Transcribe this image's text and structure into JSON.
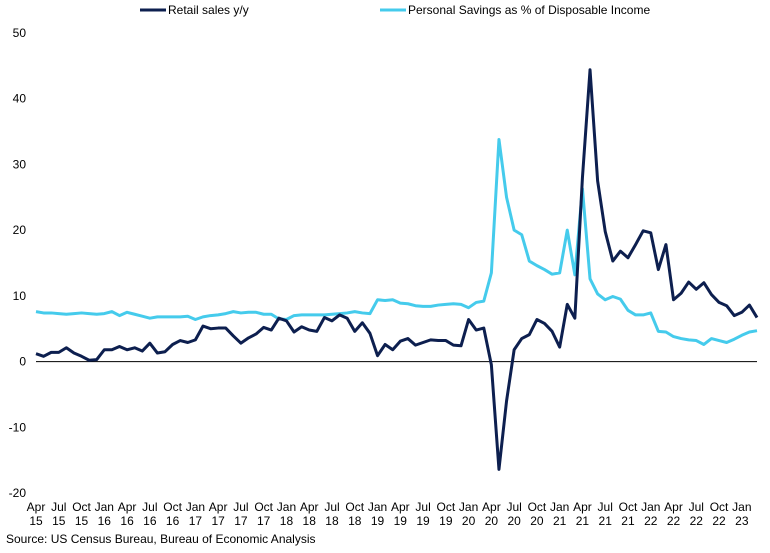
{
  "chart_data": {
    "type": "line",
    "title": "",
    "xlabel": "",
    "ylabel": "",
    "ylim": [
      -20,
      50
    ],
    "yticks": [
      -20,
      -10,
      0,
      10,
      20,
      30,
      40,
      50
    ],
    "grid": false,
    "legend_placement": "top",
    "x_start": "Apr 2015",
    "x_end": "Feb 2023",
    "x_tick_labels": [
      {
        "month": "Apr",
        "year": "15"
      },
      {
        "month": "Jul",
        "year": "15"
      },
      {
        "month": "Oct",
        "year": "15"
      },
      {
        "month": "Jan",
        "year": "16"
      },
      {
        "month": "Apr",
        "year": "16"
      },
      {
        "month": "Jul",
        "year": "16"
      },
      {
        "month": "Oct",
        "year": "16"
      },
      {
        "month": "Jan",
        "year": "17"
      },
      {
        "month": "Apr",
        "year": "17"
      },
      {
        "month": "Jul",
        "year": "17"
      },
      {
        "month": "Oct",
        "year": "17"
      },
      {
        "month": "Jan",
        "year": "18"
      },
      {
        "month": "Apr",
        "year": "18"
      },
      {
        "month": "Jul",
        "year": "18"
      },
      {
        "month": "Oct",
        "year": "18"
      },
      {
        "month": "Jan",
        "year": "19"
      },
      {
        "month": "Apr",
        "year": "19"
      },
      {
        "month": "Jul",
        "year": "19"
      },
      {
        "month": "Oct",
        "year": "19"
      },
      {
        "month": "Jan",
        "year": "20"
      },
      {
        "month": "Apr",
        "year": "20"
      },
      {
        "month": "Jul",
        "year": "20"
      },
      {
        "month": "Oct",
        "year": "20"
      },
      {
        "month": "Jan",
        "year": "21"
      },
      {
        "month": "Apr",
        "year": "21"
      },
      {
        "month": "Jul",
        "year": "21"
      },
      {
        "month": "Oct",
        "year": "21"
      },
      {
        "month": "Jan",
        "year": "22"
      },
      {
        "month": "Apr",
        "year": "22"
      },
      {
        "month": "Jul",
        "year": "22"
      },
      {
        "month": "Oct",
        "year": "22"
      },
      {
        "month": "Jan",
        "year": "23"
      }
    ],
    "series": [
      {
        "name": "Retail sales y/y",
        "color": "#0d1f4f",
        "values": [
          1.2,
          0.8,
          1.4,
          1.4,
          2.1,
          1.3,
          0.8,
          0.2,
          0.3,
          1.8,
          1.8,
          2.3,
          1.8,
          2.1,
          1.6,
          2.8,
          1.3,
          1.5,
          2.6,
          3.2,
          2.9,
          3.3,
          5.4,
          5.0,
          5.1,
          5.1,
          3.9,
          2.8,
          3.6,
          4.2,
          5.2,
          4.8,
          6.6,
          6.2,
          4.5,
          5.3,
          4.8,
          4.6,
          6.7,
          6.2,
          7.1,
          6.6,
          4.6,
          5.9,
          4.3,
          0.9,
          2.6,
          1.8,
          3.1,
          3.5,
          2.5,
          2.9,
          3.3,
          3.2,
          3.2,
          2.5,
          2.4,
          6.4,
          4.8,
          5.1,
          -0.5,
          -16.4,
          -6.0,
          1.8,
          3.5,
          4.1,
          6.4,
          5.8,
          4.6,
          2.2,
          8.7,
          6.6,
          28.0,
          44.4,
          27.5,
          19.8,
          15.3,
          16.8,
          15.8,
          17.8,
          19.9,
          19.6,
          14.0,
          17.8,
          9.4,
          10.4,
          12.1,
          11.0,
          12.0,
          10.2,
          9.0,
          8.5,
          7.0,
          7.5,
          8.6,
          6.7
        ]
      },
      {
        "name": "Personal Savings as % of Disposable Income",
        "color": "#45cbec",
        "values": [
          7.6,
          7.4,
          7.4,
          7.3,
          7.2,
          7.3,
          7.4,
          7.3,
          7.2,
          7.3,
          7.6,
          7.0,
          7.5,
          7.2,
          6.9,
          6.6,
          6.8,
          6.8,
          6.8,
          6.8,
          6.9,
          6.4,
          6.8,
          7.0,
          7.1,
          7.3,
          7.6,
          7.4,
          7.5,
          7.5,
          7.2,
          7.2,
          6.5,
          6.4,
          7.0,
          7.1,
          7.1,
          7.1,
          7.1,
          7.2,
          7.3,
          7.4,
          7.6,
          7.4,
          7.3,
          9.4,
          9.3,
          9.4,
          8.9,
          8.8,
          8.5,
          8.4,
          8.4,
          8.6,
          8.7,
          8.8,
          8.7,
          8.2,
          9.0,
          9.2,
          13.5,
          33.8,
          25.0,
          20.0,
          19.3,
          15.3,
          14.6,
          14.0,
          13.3,
          13.5,
          20.0,
          13.2,
          26.3,
          12.6,
          10.3,
          9.4,
          9.9,
          9.5,
          7.8,
          7.1,
          7.1,
          7.4,
          4.6,
          4.5,
          3.8,
          3.5,
          3.3,
          3.2,
          2.6,
          3.5,
          3.2,
          2.9,
          3.4,
          4.0,
          4.5,
          4.7
        ]
      }
    ]
  },
  "legend": {
    "items": [
      {
        "label": "Retail sales y/y",
        "color": "#0d1f4f"
      },
      {
        "label": "Personal Savings as % of Disposable Income",
        "color": "#45cbec"
      }
    ]
  },
  "source": "Source: US Census Bureau, Bureau of Economic Analysis"
}
